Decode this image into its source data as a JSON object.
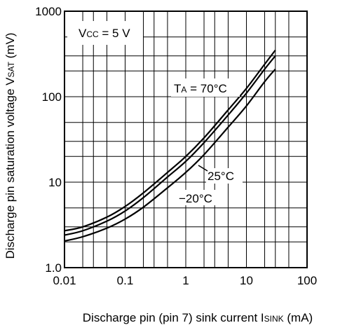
{
  "chart_data": {
    "type": "line",
    "x_scale": "log",
    "y_scale": "log",
    "xlim": [
      0.01,
      100
    ],
    "ylim": [
      1.0,
      1000
    ],
    "grid": true,
    "x_ticks": [
      {
        "value": 0.01,
        "label": "0.01"
      },
      {
        "value": 0.1,
        "label": "0.1"
      },
      {
        "value": 1,
        "label": "1"
      },
      {
        "value": 10,
        "label": "10"
      },
      {
        "value": 100,
        "label": "100"
      }
    ],
    "y_ticks": [
      {
        "value": 1,
        "label": "1.0"
      },
      {
        "value": 10,
        "label": "10"
      },
      {
        "value": 100,
        "label": "100"
      },
      {
        "value": 1000,
        "label": "1000"
      }
    ],
    "xlabel": {
      "main": "Discharge pin (pin 7) sink current I",
      "sub": "SINK",
      "unit": " (mA)"
    },
    "ylabel": {
      "main": "Discharge pin saturation voltage V",
      "sub": "SAT",
      "unit": " (mV)"
    },
    "condition": {
      "prefix": "V",
      "sub": "CC",
      "rest": " = 5 V"
    },
    "series": [
      {
        "name": "TA = 70°C",
        "label_prefix": "T",
        "label_sub": "A",
        "label_rest": " = 70°C",
        "x": [
          0.01,
          0.02,
          0.05,
          0.1,
          0.2,
          0.5,
          1,
          2,
          5,
          10,
          20,
          30
        ],
        "y": [
          2.7,
          3.0,
          3.9,
          5.2,
          7.5,
          13,
          20,
          33,
          70,
          125,
          240,
          350
        ]
      },
      {
        "name": "25°C",
        "label_rest": "25°C",
        "x": [
          0.01,
          0.02,
          0.05,
          0.1,
          0.2,
          0.5,
          1,
          2,
          5,
          10,
          20,
          30
        ],
        "y": [
          2.4,
          2.7,
          3.5,
          4.6,
          6.6,
          11.5,
          17.5,
          29,
          61,
          110,
          210,
          300
        ]
      },
      {
        "name": "−20°C",
        "label_rest": "−20°C",
        "x": [
          0.01,
          0.02,
          0.05,
          0.1,
          0.2,
          0.5,
          1,
          2,
          5,
          10,
          20,
          30
        ],
        "y": [
          2.05,
          2.3,
          2.9,
          3.7,
          5.1,
          8.6,
          13,
          21,
          44,
          78,
          150,
          210
        ]
      }
    ]
  }
}
